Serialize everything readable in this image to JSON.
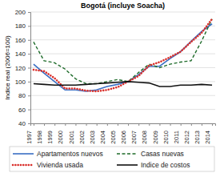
{
  "chart_data": {
    "type": "line",
    "title": "Bogotá (incluye Soacha)",
    "y_label": "Indice real (2006=100)",
    "categories": [
      "1997",
      "1998",
      "1999",
      "2000",
      "2001",
      "2002",
      "2003",
      "2004",
      "2005",
      "2006",
      "2007",
      "2008",
      "2009",
      "2010",
      "2011",
      "2012",
      "2013",
      "2014"
    ],
    "series": [
      {
        "name": "Apartamentos nuevos",
        "color": "#3a6fc4",
        "line_style": "solid",
        "values": [
          125,
          112,
          100,
          88,
          88,
          86,
          88,
          93,
          96,
          100,
          110,
          122,
          122,
          133,
          143,
          158,
          172,
          183
        ]
      },
      {
        "name": "Casas nuevas",
        "color": "#1e6b2a",
        "line_style": "dashed",
        "values": [
          157,
          130,
          127,
          118,
          104,
          97,
          97,
          100,
          103,
          100,
          113,
          125,
          120,
          125,
          128,
          130,
          158,
          190
        ]
      },
      {
        "name": "Vivienda usada",
        "color": "#d9302c",
        "line_style": "dotted",
        "values": [
          117,
          115,
          105,
          90,
          90,
          87,
          86,
          88,
          92,
          100,
          108,
          123,
          128,
          135,
          143,
          157,
          170,
          190
        ]
      },
      {
        "name": "Indice de costos",
        "color": "#111111",
        "line_style": "solid",
        "values": [
          97,
          96,
          95,
          95,
          95,
          96,
          97,
          98,
          99,
          100,
          99,
          98,
          93,
          93,
          95,
          95,
          96,
          95
        ]
      }
    ],
    "ylim": [
      40,
      200
    ],
    "yticks": [
      40,
      60,
      80,
      100,
      120,
      140,
      160,
      180,
      200
    ],
    "grid": true,
    "legend": "bottom"
  }
}
